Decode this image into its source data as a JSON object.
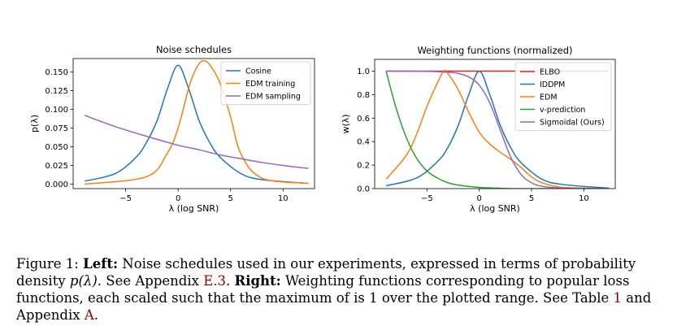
{
  "chart_data": [
    {
      "type": "line",
      "title": "Noise schedules",
      "xlabel": "λ (log SNR)",
      "ylabel": "p(λ)",
      "xlim": [
        -10,
        13
      ],
      "ylim": [
        -0.006,
        0.168
      ],
      "xticks": [
        -5,
        0,
        5,
        10
      ],
      "xtick_labels": [
        "−5",
        "0",
        "5",
        "10"
      ],
      "yticks": [
        0.0,
        0.025,
        0.05,
        0.075,
        0.1,
        0.125,
        0.15
      ],
      "ytick_labels": [
        "0.000",
        "0.025",
        "0.050",
        "0.075",
        "0.100",
        "0.125",
        "0.150"
      ],
      "grid": false,
      "legend": "top-right",
      "series": [
        {
          "name": "Cosine",
          "color": "#1f77b4",
          "x": [
            -8.9,
            -6,
            -4,
            -3,
            -2,
            -1,
            0,
            1,
            2,
            3,
            4,
            6,
            8,
            12.4
          ],
          "y": [
            0.004,
            0.014,
            0.036,
            0.056,
            0.085,
            0.128,
            0.159,
            0.128,
            0.085,
            0.056,
            0.036,
            0.014,
            0.006,
            0.001
          ]
        },
        {
          "name": "EDM training",
          "color": "#ff7f0e",
          "x": [
            -8.9,
            -3,
            -1,
            0,
            1,
            1.5,
            2,
            2.4,
            3,
            4,
            5,
            6,
            8,
            12.4
          ],
          "y": [
            0.0,
            0.01,
            0.042,
            0.075,
            0.128,
            0.148,
            0.161,
            0.165,
            0.16,
            0.135,
            0.09,
            0.04,
            0.008,
            0.001
          ]
        },
        {
          "name": "EDM sampling",
          "color": "#9467bd",
          "x": [
            -8.9,
            -6,
            -3,
            0,
            2,
            4,
            6,
            8,
            10,
            12.4
          ],
          "y": [
            0.092,
            0.077,
            0.064,
            0.052,
            0.046,
            0.039,
            0.034,
            0.029,
            0.025,
            0.021
          ]
        }
      ]
    },
    {
      "type": "line",
      "title": "Weighting functions (normalized)",
      "xlabel": "λ (log SNR)",
      "ylabel": "w(λ)",
      "xlim": [
        -10,
        13
      ],
      "ylim": [
        0.0,
        1.1
      ],
      "xticks": [
        -5,
        0,
        5,
        10
      ],
      "xtick_labels": [
        "−5",
        "0",
        "5",
        "10"
      ],
      "yticks": [
        0.0,
        0.2,
        0.4,
        0.6,
        0.8,
        1.0
      ],
      "ytick_labels": [
        "0.0",
        "0.2",
        "0.4",
        "0.6",
        "0.8",
        "1.0"
      ],
      "grid": false,
      "legend": "top-right",
      "series": [
        {
          "name": "ELBO",
          "color": "#d62728",
          "x": [
            -8.9,
            12.4
          ],
          "y": [
            1.0,
            1.0
          ]
        },
        {
          "name": "IDDPM",
          "color": "#1f77b4",
          "x": [
            -8.9,
            -6,
            -4,
            -3,
            -2,
            -1,
            0,
            1,
            2,
            3,
            4,
            6,
            8,
            12.4
          ],
          "y": [
            0.025,
            0.09,
            0.23,
            0.35,
            0.54,
            0.8,
            1.0,
            0.8,
            0.54,
            0.35,
            0.22,
            0.08,
            0.035,
            0.004
          ]
        },
        {
          "name": "EDM",
          "color": "#ff7f0e",
          "x": [
            -8.9,
            -7,
            -6,
            -5,
            -4,
            -3.4,
            -3,
            -2,
            -1,
            0,
            1,
            2,
            3,
            4,
            5,
            6,
            8,
            12.4
          ],
          "y": [
            0.08,
            0.28,
            0.46,
            0.7,
            0.9,
            1.0,
            0.98,
            0.84,
            0.65,
            0.48,
            0.38,
            0.31,
            0.25,
            0.18,
            0.1,
            0.05,
            0.01,
            0.0
          ]
        },
        {
          "name": "v-prediction",
          "color": "#2ca02c",
          "x": [
            -8.9,
            -8,
            -7,
            -6,
            -5,
            -4,
            -3,
            -2,
            0,
            3,
            6,
            12.4
          ],
          "y": [
            1.0,
            0.7,
            0.44,
            0.26,
            0.15,
            0.09,
            0.05,
            0.03,
            0.01,
            0.0,
            0.0,
            0.0
          ]
        },
        {
          "name": "Sigmoidal (Ours)",
          "color": "#9467bd",
          "x": [
            -8.9,
            -5,
            -3,
            -2,
            -1,
            0,
            1,
            2,
            3,
            4,
            5,
            6,
            8,
            12.4
          ],
          "y": [
            1.0,
            0.998,
            0.99,
            0.98,
            0.95,
            0.88,
            0.73,
            0.5,
            0.27,
            0.12,
            0.05,
            0.02,
            0.003,
            0.0
          ]
        }
      ]
    }
  ],
  "caption": {
    "fig_label": "Figure 1: ",
    "left_label": "Left:",
    "left_text": " Noise schedules used in our experiments, expressed in terms of probability density ",
    "math_p": "p(λ)",
    "after_math": ". See Appendix ",
    "ref_appendix_e3": "E.3",
    "after_e3": ". ",
    "right_label": "Right:",
    "right_text": " Weighting functions corresponding to popular loss functions, each scaled such that the maximum of is 1 over the plotted range. See Table ",
    "ref_table": "1",
    "and_appendix": " and Appendix ",
    "ref_appendix_a": "A",
    "end": "."
  }
}
